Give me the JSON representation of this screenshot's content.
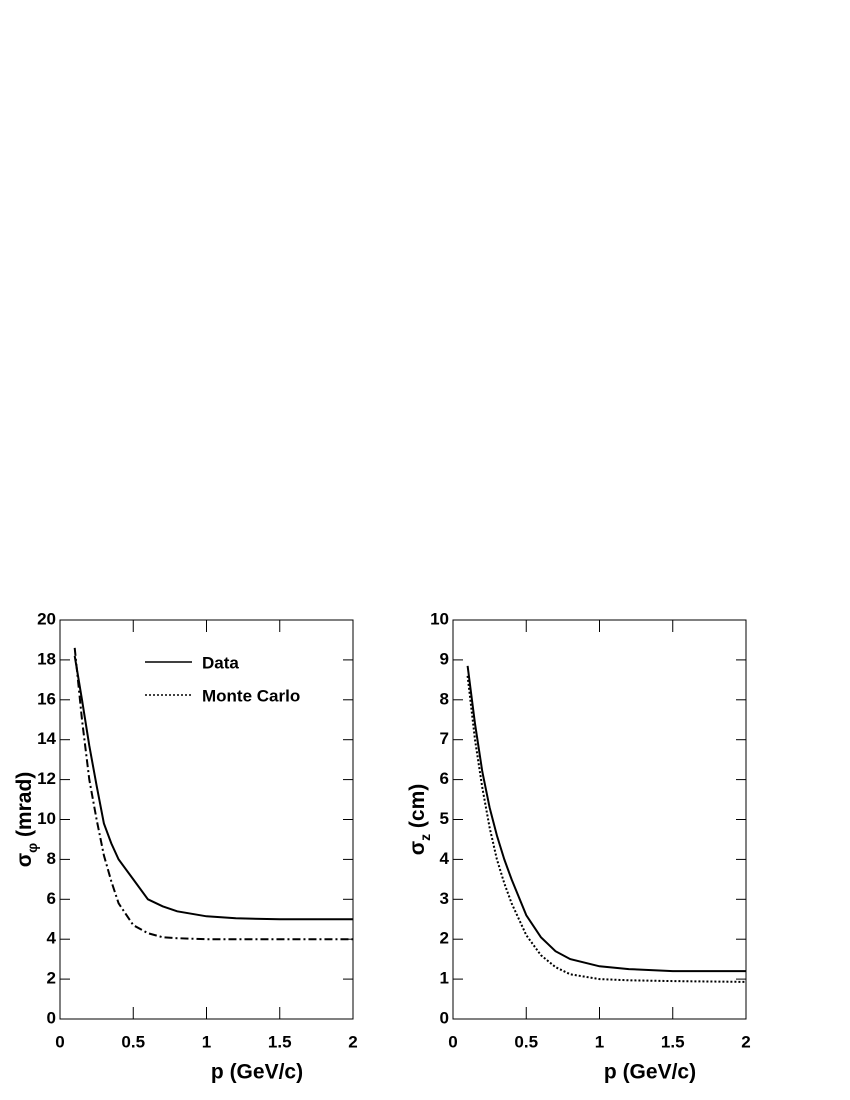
{
  "chart_data": [
    {
      "type": "line",
      "xlabel": "p (GeV/c)",
      "ylabel": [
        "σ",
        "φ",
        " (mrad)"
      ],
      "xlim": [
        0,
        2
      ],
      "ylim": [
        0,
        20
      ],
      "xticks": [
        0,
        0.5,
        1,
        1.5,
        2
      ],
      "yticks": [
        0,
        2,
        4,
        6,
        8,
        10,
        12,
        14,
        16,
        18,
        20
      ],
      "legend": "upper right",
      "x": [
        0.1,
        0.15,
        0.2,
        0.25,
        0.3,
        0.35,
        0.4,
        0.5,
        0.6,
        0.7,
        0.8,
        1.0,
        1.2,
        1.5,
        2.0
      ],
      "series": [
        {
          "name": "Data",
          "color": "#000000",
          "linestyle": "solid",
          "values": [
            18.2,
            16.0,
            13.7,
            11.7,
            9.8,
            8.8,
            8.0,
            7.0,
            6.0,
            5.65,
            5.4,
            5.15,
            5.05,
            5.0,
            5.0
          ]
        },
        {
          "name": "Monte Carlo",
          "color": "#000000",
          "linestyle": "dashdot",
          "values": [
            18.6,
            15.0,
            12.0,
            10.0,
            8.2,
            6.9,
            5.8,
            4.7,
            4.3,
            4.1,
            4.05,
            4.0,
            4.0,
            4.0,
            4.0
          ]
        }
      ]
    },
    {
      "type": "line",
      "xlabel": "p (GeV/c)",
      "ylabel": [
        "σ",
        "z",
        " (cm)"
      ],
      "xlim": [
        0,
        2
      ],
      "ylim": [
        0,
        10
      ],
      "xticks": [
        0,
        0.5,
        1,
        1.5,
        2
      ],
      "yticks": [
        0,
        1,
        2,
        3,
        4,
        5,
        6,
        7,
        8,
        9,
        10
      ],
      "x": [
        0.1,
        0.15,
        0.2,
        0.25,
        0.3,
        0.35,
        0.4,
        0.5,
        0.6,
        0.7,
        0.8,
        1.0,
        1.2,
        1.5,
        2.0
      ],
      "series": [
        {
          "color": "#000000",
          "linestyle": "solid",
          "values": [
            8.85,
            7.4,
            6.2,
            5.3,
            4.6,
            4.0,
            3.5,
            2.6,
            2.05,
            1.7,
            1.5,
            1.32,
            1.25,
            1.2,
            1.2
          ]
        },
        {
          "color": "#000000",
          "linestyle": "dotted",
          "values": [
            8.6,
            7.0,
            5.8,
            4.8,
            4.0,
            3.4,
            2.9,
            2.1,
            1.6,
            1.3,
            1.12,
            1.0,
            0.97,
            0.95,
            0.93
          ]
        }
      ]
    }
  ]
}
